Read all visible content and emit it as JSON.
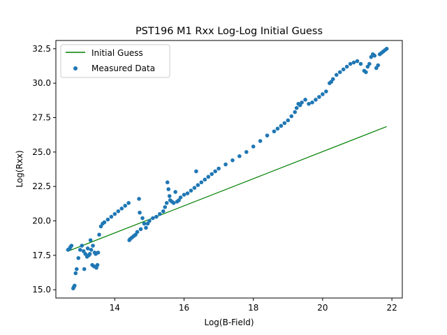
{
  "chart_data": {
    "type": "scatter",
    "title": "PST196 M1 Rxx Log-Log Initial Guess",
    "xlabel": "Log(B-Field)",
    "ylabel": "Log(Rxx)",
    "xlim": [
      12.3,
      22.3
    ],
    "ylim": [
      14.4,
      33.1
    ],
    "xticks": [
      14,
      16,
      18,
      20,
      22
    ],
    "xtick_labels": [
      "14",
      "16",
      "18",
      "20",
      "22"
    ],
    "yticks": [
      15.0,
      17.5,
      20.0,
      22.5,
      25.0,
      27.5,
      30.0,
      32.5
    ],
    "ytick_labels": [
      "15.0",
      "17.5",
      "20.0",
      "22.5",
      "25.0",
      "27.5",
      "30.0",
      "32.5"
    ],
    "legend": {
      "placement": "top-left",
      "entries": [
        "Initial Guess",
        "Measured Data"
      ]
    },
    "series": [
      {
        "name": "Initial Guess",
        "kind": "line",
        "color": "#008000",
        "x": [
          12.65,
          21.85
        ],
        "y": [
          17.8,
          26.85
        ]
      },
      {
        "name": "Measured Data",
        "kind": "scatter",
        "color": "#1f77b4",
        "x": [
          12.65,
          12.7,
          12.72,
          12.75,
          12.8,
          12.82,
          12.84,
          12.87,
          12.9,
          12.95,
          13.0,
          13.05,
          13.1,
          13.12,
          13.15,
          13.2,
          13.22,
          13.25,
          13.28,
          13.3,
          13.32,
          13.35,
          13.37,
          13.4,
          13.42,
          13.45,
          13.47,
          13.5,
          13.52,
          13.55,
          13.6,
          13.65,
          13.7,
          13.8,
          13.9,
          14.0,
          14.1,
          14.2,
          14.3,
          14.4,
          14.42,
          14.45,
          14.5,
          14.55,
          14.6,
          14.65,
          14.7,
          14.72,
          14.75,
          14.8,
          14.85,
          14.9,
          14.95,
          15.0,
          15.1,
          15.2,
          15.3,
          15.4,
          15.45,
          15.5,
          15.52,
          15.55,
          15.58,
          15.6,
          15.65,
          15.7,
          15.75,
          15.8,
          15.85,
          15.9,
          16.0,
          16.1,
          16.2,
          16.3,
          16.35,
          16.4,
          16.5,
          16.6,
          16.7,
          16.8,
          16.9,
          17.0,
          17.2,
          17.4,
          17.6,
          17.8,
          18.0,
          18.2,
          18.4,
          18.6,
          18.7,
          18.8,
          18.9,
          19.0,
          19.1,
          19.2,
          19.25,
          19.3,
          19.35,
          19.4,
          19.5,
          19.6,
          19.7,
          19.8,
          19.9,
          20.0,
          20.1,
          20.2,
          20.25,
          20.3,
          20.4,
          20.5,
          20.6,
          20.7,
          20.8,
          20.9,
          21.0,
          21.1,
          21.2,
          21.25,
          21.3,
          21.35,
          21.4,
          21.45,
          21.5,
          21.55,
          21.6,
          21.65,
          21.7,
          21.75,
          21.8,
          21.85
        ],
        "y": [
          17.9,
          18.0,
          18.1,
          18.2,
          15.1,
          15.2,
          15.3,
          16.2,
          16.5,
          17.3,
          17.9,
          18.2,
          17.8,
          16.5,
          17.6,
          17.4,
          18.0,
          17.5,
          17.6,
          18.6,
          17.9,
          16.8,
          18.2,
          16.7,
          17.7,
          17.6,
          16.6,
          16.8,
          17.7,
          19.0,
          19.6,
          19.8,
          19.9,
          20.1,
          20.3,
          20.5,
          20.7,
          20.9,
          21.1,
          21.3,
          18.6,
          18.7,
          18.8,
          18.9,
          19.0,
          19.2,
          21.6,
          20.6,
          19.4,
          20.2,
          19.8,
          19.5,
          19.8,
          20.0,
          20.2,
          20.3,
          20.5,
          20.7,
          21.0,
          21.3,
          22.8,
          22.3,
          21.8,
          21.5,
          21.4,
          21.3,
          22.1,
          21.4,
          21.5,
          21.7,
          21.9,
          22.0,
          22.2,
          22.4,
          23.6,
          22.6,
          22.8,
          23.0,
          23.2,
          23.4,
          23.6,
          23.8,
          24.1,
          24.4,
          24.7,
          25.0,
          25.4,
          25.8,
          26.2,
          26.5,
          26.7,
          26.9,
          27.1,
          27.3,
          27.6,
          27.9,
          28.2,
          28.5,
          28.4,
          28.6,
          28.8,
          28.5,
          28.6,
          28.8,
          29.0,
          29.2,
          29.4,
          30.0,
          30.1,
          30.3,
          30.6,
          30.8,
          31.0,
          31.2,
          31.4,
          31.5,
          31.6,
          31.4,
          30.9,
          30.8,
          31.2,
          31.4,
          31.9,
          32.1,
          32.0,
          31.1,
          31.3,
          32.1,
          32.2,
          32.3,
          32.4,
          32.5
        ]
      }
    ]
  }
}
